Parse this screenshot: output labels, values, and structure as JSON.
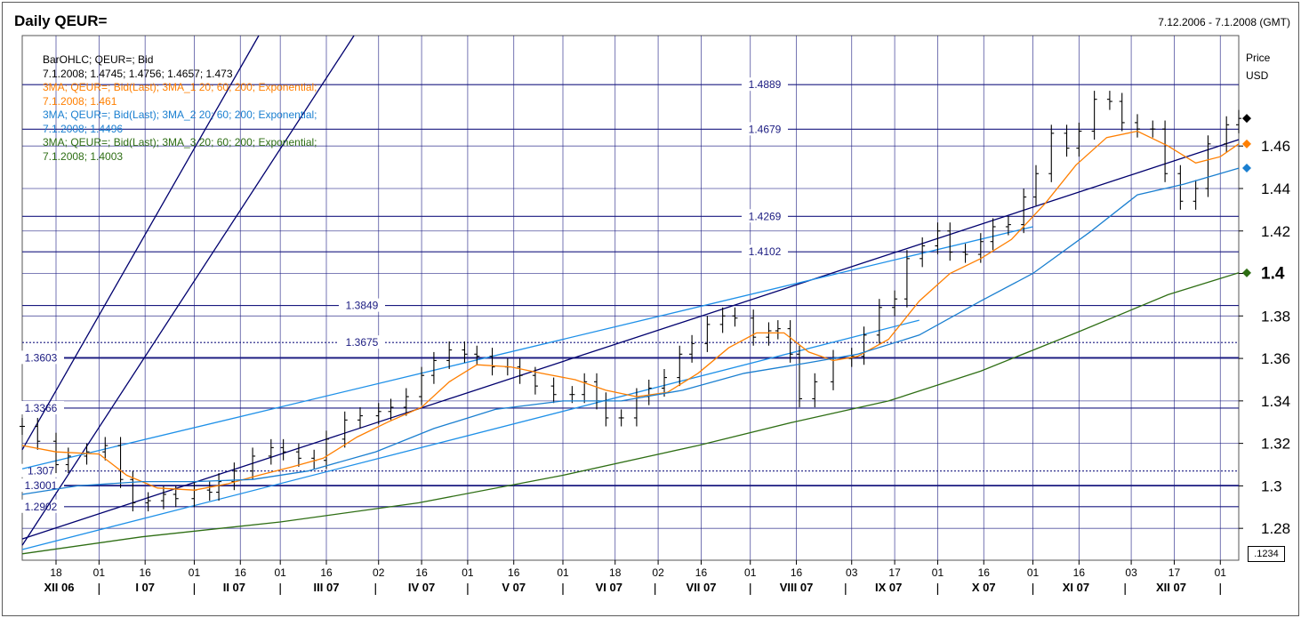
{
  "header": {
    "title": "Daily QEUR=",
    "date_range": "7.12.2006 - 7.1.2008 (GMT)"
  },
  "legend": {
    "ohlc_name": "BarOHLC; QEUR=; Bid",
    "ohlc_values": "7.1.2008; 1.4745; 1.4756; 1.4657; 1.473",
    "ma1_name": "3MA; QEUR=; Bid(Last); 3MA_1 20; 60; 200; Exponential;",
    "ma1_value": "7.1.2008; 1.461",
    "ma2_name": "3MA; QEUR=; Bid(Last); 3MA_2 20; 60; 200; Exponential;",
    "ma2_value": "7.1.2008; 1.4496",
    "ma3_name": "3MA; QEUR=; Bid(Last); 3MA_3 20; 60; 200; Exponential;",
    "ma3_value": "7.1.2008; 1.4003"
  },
  "axis_labels": {
    "price": "Price",
    "currency": "USD",
    "corner": ".1234"
  },
  "colors": {
    "grid": "#1a1a80",
    "ohlc": "#000000",
    "ma1": "#ff7f00",
    "ma2": "#1a7fd0",
    "ma3": "#2e6e14",
    "trend_dark": "#00006e",
    "trend_light": "#1e90e8"
  },
  "chart_data": {
    "type": "line",
    "title": "Daily QEUR=",
    "subtitle": "7.12.2006 - 7.1.2008 (GMT)",
    "ylabel": "Price USD",
    "ylim": [
      1.265,
      1.512
    ],
    "xlim": [
      "2006-12-07",
      "2008-01-07"
    ],
    "y_ticks": [
      1.28,
      1.3,
      1.32,
      1.34,
      1.36,
      1.38,
      1.4,
      1.42,
      1.44,
      1.46
    ],
    "y_tick_labels": [
      "1.28",
      "1.3",
      "1.32",
      "1.34",
      "1.36",
      "1.38",
      "1.4",
      "1.42",
      "1.44",
      "1.46"
    ],
    "bold_y_tick": "1.4",
    "x_ticks": [
      {
        "date": "2006-12-18",
        "label": "18"
      },
      {
        "date": "2007-01-01",
        "label": "01"
      },
      {
        "date": "2007-01-16",
        "label": "16"
      },
      {
        "date": "2007-02-01",
        "label": "01"
      },
      {
        "date": "2007-02-16",
        "label": "16"
      },
      {
        "date": "2007-03-01",
        "label": "01"
      },
      {
        "date": "2007-03-16",
        "label": "16"
      },
      {
        "date": "2007-04-02",
        "label": "02"
      },
      {
        "date": "2007-04-16",
        "label": "16"
      },
      {
        "date": "2007-05-01",
        "label": "01"
      },
      {
        "date": "2007-05-16",
        "label": "16"
      },
      {
        "date": "2007-06-01",
        "label": "01"
      },
      {
        "date": "2007-06-18",
        "label": "18"
      },
      {
        "date": "2007-07-02",
        "label": "02"
      },
      {
        "date": "2007-07-16",
        "label": "16"
      },
      {
        "date": "2007-08-01",
        "label": "01"
      },
      {
        "date": "2007-08-16",
        "label": "16"
      },
      {
        "date": "2007-09-03",
        "label": "03"
      },
      {
        "date": "2007-09-17",
        "label": "17"
      },
      {
        "date": "2007-10-01",
        "label": "01"
      },
      {
        "date": "2007-10-16",
        "label": "16"
      },
      {
        "date": "2007-11-01",
        "label": "01"
      },
      {
        "date": "2007-11-16",
        "label": "16"
      },
      {
        "date": "2007-12-03",
        "label": "03"
      },
      {
        "date": "2007-12-17",
        "label": "17"
      },
      {
        "date": "2008-01-01",
        "label": "01"
      }
    ],
    "months": [
      {
        "label": "XII 06",
        "center": "2006-12-19"
      },
      {
        "label": "I 07",
        "center": "2007-01-16"
      },
      {
        "label": "II 07",
        "center": "2007-02-14"
      },
      {
        "label": "III 07",
        "center": "2007-03-16"
      },
      {
        "label": "IV 07",
        "center": "2007-04-16"
      },
      {
        "label": "V 07",
        "center": "2007-05-16"
      },
      {
        "label": "VI 07",
        "center": "2007-06-16"
      },
      {
        "label": "VII 07",
        "center": "2007-07-16"
      },
      {
        "label": "VIII 07",
        "center": "2007-08-16"
      },
      {
        "label": "IX 07",
        "center": "2007-09-15"
      },
      {
        "label": "X 07",
        "center": "2007-10-16"
      },
      {
        "label": "XI 07",
        "center": "2007-11-15"
      },
      {
        "label": "XII 07",
        "center": "2007-12-16"
      }
    ],
    "month_separators": [
      "2007-01-01",
      "2007-02-01",
      "2007-03-01",
      "2007-04-01",
      "2007-05-01",
      "2007-06-01",
      "2007-07-01",
      "2007-08-01",
      "2007-09-01",
      "2007-10-01",
      "2007-11-01",
      "2007-12-01",
      "2008-01-01"
    ],
    "horizontal_levels": [
      {
        "value": 1.4889,
        "label": "1.4889",
        "label_pos": "center"
      },
      {
        "value": 1.4679,
        "label": "1.4679",
        "label_pos": "center"
      },
      {
        "value": 1.4269,
        "label": "1.4269",
        "label_pos": "center"
      },
      {
        "value": 1.4102,
        "label": "1.4102",
        "label_pos": "center"
      },
      {
        "value": 1.3849,
        "label": "1.3849",
        "label_pos": "left-center"
      },
      {
        "value": 1.3675,
        "label": "1.3675",
        "label_pos": "left-center",
        "dotted": true
      },
      {
        "value": 1.3603,
        "label": "1.3603",
        "label_pos": "left",
        "thick": true
      },
      {
        "value": 1.3366,
        "label": "1.3366",
        "label_pos": "left"
      },
      {
        "value": 1.307,
        "label": "1.307",
        "label_pos": "left",
        "dotted": true
      },
      {
        "value": 1.3001,
        "label": "1.3001",
        "label_pos": "left",
        "thick": true
      },
      {
        "value": 1.2902,
        "label": "1.2902",
        "label_pos": "left"
      }
    ],
    "trendlines": [
      {
        "series": "dark",
        "from": [
          "2006-12-07",
          1.317
        ],
        "to": [
          "2007-02-22",
          1.512
        ]
      },
      {
        "series": "dark",
        "from": [
          "2006-12-07",
          1.272
        ],
        "to": [
          "2007-03-25",
          1.512
        ]
      },
      {
        "series": "dark",
        "from": [
          "2006-12-07",
          1.275
        ],
        "to": [
          "2008-01-07",
          1.463
        ]
      },
      {
        "series": "light",
        "from": [
          "2006-12-07",
          1.308
        ],
        "to": [
          "2007-11-01",
          1.422
        ]
      },
      {
        "series": "light",
        "from": [
          "2006-12-07",
          1.27
        ],
        "to": [
          "2007-09-25",
          1.378
        ]
      }
    ],
    "series": [
      {
        "name": "BarOHLC; QEUR=; Bid",
        "type": "ohlc",
        "color": "#000000",
        "points": [
          [
            "2006-12-07",
            1.328
          ],
          [
            "2006-12-12",
            1.321
          ],
          [
            "2006-12-18",
            1.31
          ],
          [
            "2006-12-22",
            1.314
          ],
          [
            "2006-12-28",
            1.316
          ],
          [
            "2007-01-03",
            1.319
          ],
          [
            "2007-01-08",
            1.303
          ],
          [
            "2007-01-12",
            1.292
          ],
          [
            "2007-01-17",
            1.293
          ],
          [
            "2007-01-22",
            1.296
          ],
          [
            "2007-01-26",
            1.294
          ],
          [
            "2007-02-01",
            1.298
          ],
          [
            "2007-02-06",
            1.297
          ],
          [
            "2007-02-09",
            1.302
          ],
          [
            "2007-02-14",
            1.307
          ],
          [
            "2007-02-20",
            1.314
          ],
          [
            "2007-02-26",
            1.318
          ],
          [
            "2007-03-02",
            1.316
          ],
          [
            "2007-03-07",
            1.313
          ],
          [
            "2007-03-12",
            1.312
          ],
          [
            "2007-03-16",
            1.322
          ],
          [
            "2007-03-22",
            1.331
          ],
          [
            "2007-03-27",
            1.333
          ],
          [
            "2007-04-02",
            1.335
          ],
          [
            "2007-04-06",
            1.337
          ],
          [
            "2007-04-11",
            1.342
          ],
          [
            "2007-04-16",
            1.352
          ],
          [
            "2007-04-20",
            1.359
          ],
          [
            "2007-04-25",
            1.364
          ],
          [
            "2007-04-30",
            1.362
          ],
          [
            "2007-05-04",
            1.361
          ],
          [
            "2007-05-09",
            1.356
          ],
          [
            "2007-05-14",
            1.356
          ],
          [
            "2007-05-18",
            1.352
          ],
          [
            "2007-05-23",
            1.347
          ],
          [
            "2007-05-29",
            1.343
          ],
          [
            "2007-06-04",
            1.343
          ],
          [
            "2007-06-08",
            1.349
          ],
          [
            "2007-06-12",
            1.34
          ],
          [
            "2007-06-15",
            1.332
          ],
          [
            "2007-06-20",
            1.332
          ],
          [
            "2007-06-25",
            1.342
          ],
          [
            "2007-06-29",
            1.346
          ],
          [
            "2007-07-04",
            1.351
          ],
          [
            "2007-07-09",
            1.362
          ],
          [
            "2007-07-13",
            1.367
          ],
          [
            "2007-07-18",
            1.376
          ],
          [
            "2007-07-23",
            1.38
          ],
          [
            "2007-07-27",
            1.379
          ],
          [
            "2007-08-02",
            1.37
          ],
          [
            "2007-08-07",
            1.373
          ],
          [
            "2007-08-10",
            1.374
          ],
          [
            "2007-08-14",
            1.362
          ],
          [
            "2007-08-17",
            1.341
          ],
          [
            "2007-08-22",
            1.349
          ],
          [
            "2007-08-28",
            1.36
          ],
          [
            "2007-09-03",
            1.361
          ],
          [
            "2007-09-07",
            1.371
          ],
          [
            "2007-09-12",
            1.384
          ],
          [
            "2007-09-17",
            1.388
          ],
          [
            "2007-09-21",
            1.407
          ],
          [
            "2007-09-26",
            1.413
          ],
          [
            "2007-10-01",
            1.42
          ],
          [
            "2007-10-05",
            1.41
          ],
          [
            "2007-10-10",
            1.409
          ],
          [
            "2007-10-15",
            1.415
          ],
          [
            "2007-10-19",
            1.422
          ],
          [
            "2007-10-24",
            1.423
          ],
          [
            "2007-10-29",
            1.436
          ],
          [
            "2007-11-02",
            1.447
          ],
          [
            "2007-11-07",
            1.466
          ],
          [
            "2007-11-12",
            1.459
          ],
          [
            "2007-11-16",
            1.467
          ],
          [
            "2007-11-21",
            1.482
          ],
          [
            "2007-11-26",
            1.481
          ],
          [
            "2007-11-30",
            1.471
          ],
          [
            "2007-12-05",
            1.468
          ],
          [
            "2007-12-10",
            1.468
          ],
          [
            "2007-12-14",
            1.447
          ],
          [
            "2007-12-19",
            1.434
          ],
          [
            "2007-12-24",
            1.44
          ],
          [
            "2007-12-28",
            1.461
          ],
          [
            "2008-01-03",
            1.47
          ],
          [
            "2008-01-07",
            1.473
          ]
        ]
      },
      {
        "name": "3MA_1 20",
        "color": "#ff7f00",
        "points": [
          [
            "2006-12-07",
            1.319
          ],
          [
            "2006-12-18",
            1.316
          ],
          [
            "2007-01-01",
            1.315
          ],
          [
            "2007-01-10",
            1.305
          ],
          [
            "2007-01-20",
            1.299
          ],
          [
            "2007-02-01",
            1.298
          ],
          [
            "2007-02-12",
            1.301
          ],
          [
            "2007-02-22",
            1.305
          ],
          [
            "2007-03-05",
            1.309
          ],
          [
            "2007-03-15",
            1.313
          ],
          [
            "2007-03-26",
            1.323
          ],
          [
            "2007-04-05",
            1.33
          ],
          [
            "2007-04-16",
            1.337
          ],
          [
            "2007-04-25",
            1.349
          ],
          [
            "2007-05-04",
            1.357
          ],
          [
            "2007-05-15",
            1.356
          ],
          [
            "2007-05-25",
            1.353
          ],
          [
            "2007-06-05",
            1.35
          ],
          [
            "2007-06-15",
            1.345
          ],
          [
            "2007-06-25",
            1.342
          ],
          [
            "2007-07-05",
            1.344
          ],
          [
            "2007-07-15",
            1.353
          ],
          [
            "2007-07-25",
            1.365
          ],
          [
            "2007-08-03",
            1.372
          ],
          [
            "2007-08-12",
            1.372
          ],
          [
            "2007-08-20",
            1.363
          ],
          [
            "2007-08-28",
            1.359
          ],
          [
            "2007-09-05",
            1.361
          ],
          [
            "2007-09-15",
            1.369
          ],
          [
            "2007-09-25",
            1.387
          ],
          [
            "2007-10-05",
            1.4
          ],
          [
            "2007-10-15",
            1.407
          ],
          [
            "2007-10-25",
            1.416
          ],
          [
            "2007-11-05",
            1.433
          ],
          [
            "2007-11-15",
            1.451
          ],
          [
            "2007-11-25",
            1.464
          ],
          [
            "2007-12-05",
            1.467
          ],
          [
            "2007-12-15",
            1.46
          ],
          [
            "2007-12-24",
            1.452
          ],
          [
            "2008-01-01",
            1.455
          ],
          [
            "2008-01-07",
            1.461
          ]
        ]
      },
      {
        "name": "3MA_2 60",
        "color": "#1a7fd0",
        "points": [
          [
            "2006-12-07",
            1.296
          ],
          [
            "2006-12-25",
            1.3
          ],
          [
            "2007-01-15",
            1.302
          ],
          [
            "2007-02-01",
            1.302
          ],
          [
            "2007-02-20",
            1.303
          ],
          [
            "2007-03-10",
            1.307
          ],
          [
            "2007-04-01",
            1.316
          ],
          [
            "2007-04-20",
            1.327
          ],
          [
            "2007-05-10",
            1.336
          ],
          [
            "2007-06-01",
            1.34
          ],
          [
            "2007-06-20",
            1.34
          ],
          [
            "2007-07-10",
            1.345
          ],
          [
            "2007-07-30",
            1.353
          ],
          [
            "2007-08-20",
            1.358
          ],
          [
            "2007-09-05",
            1.362
          ],
          [
            "2007-09-25",
            1.371
          ],
          [
            "2007-10-15",
            1.387
          ],
          [
            "2007-11-01",
            1.4
          ],
          [
            "2007-11-20",
            1.42
          ],
          [
            "2007-12-05",
            1.437
          ],
          [
            "2007-12-20",
            1.442
          ],
          [
            "2008-01-07",
            1.4496
          ]
        ]
      },
      {
        "name": "3MA_3 200",
        "color": "#2e6e14",
        "points": [
          [
            "2006-12-07",
            1.268
          ],
          [
            "2007-01-15",
            1.276
          ],
          [
            "2007-03-01",
            1.283
          ],
          [
            "2007-04-15",
            1.292
          ],
          [
            "2007-06-01",
            1.305
          ],
          [
            "2007-07-15",
            1.319
          ],
          [
            "2007-08-15",
            1.33
          ],
          [
            "2007-09-15",
            1.34
          ],
          [
            "2007-10-15",
            1.354
          ],
          [
            "2007-11-15",
            1.372
          ],
          [
            "2007-12-15",
            1.39
          ],
          [
            "2008-01-07",
            1.4003
          ]
        ]
      }
    ]
  }
}
